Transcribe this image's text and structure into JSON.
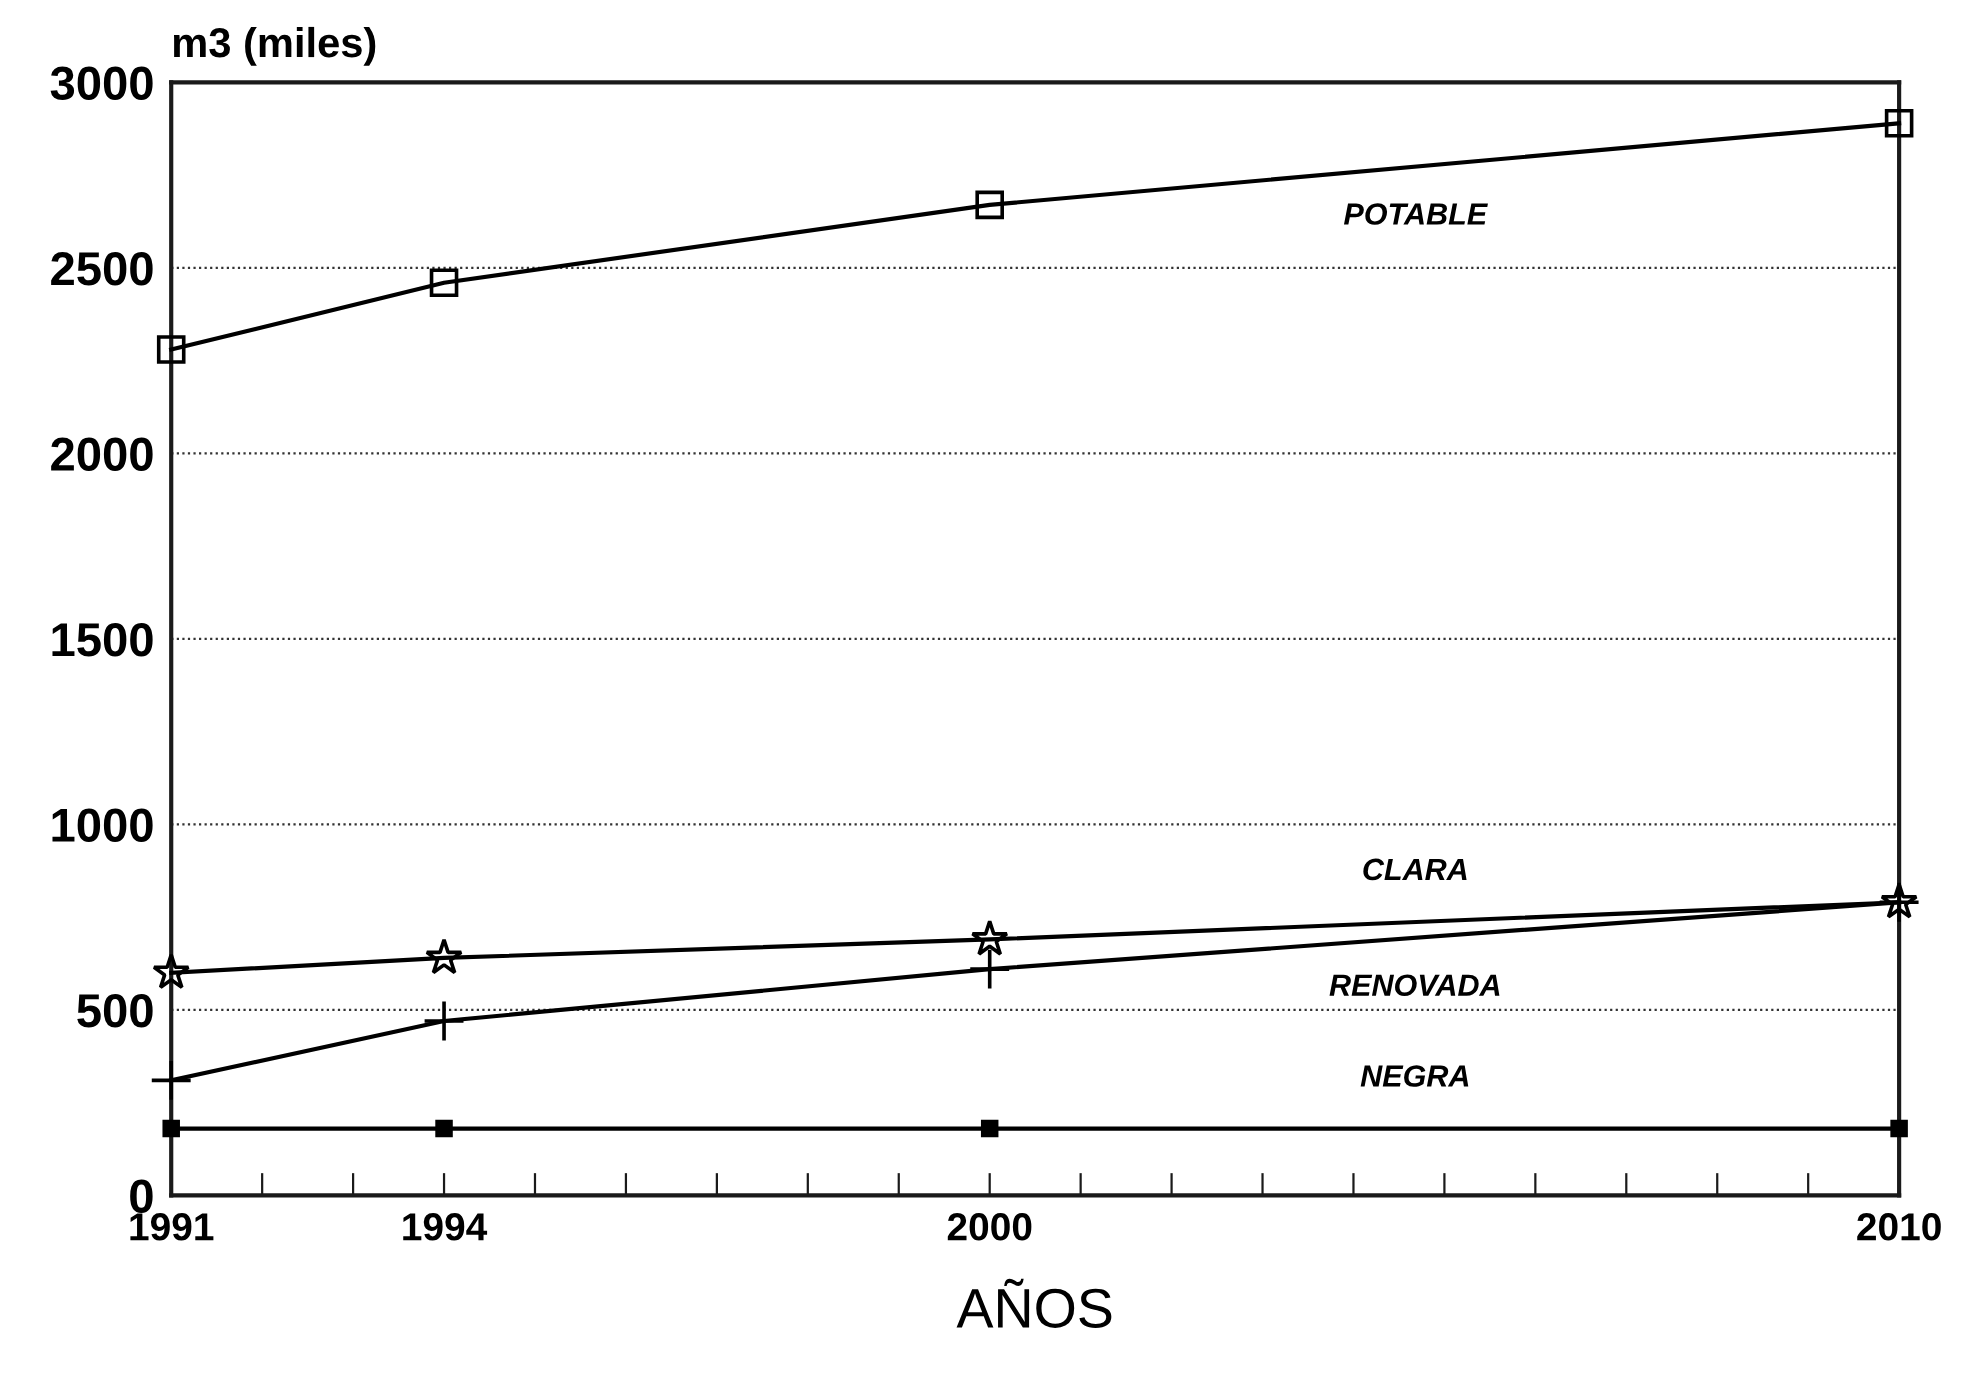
{
  "chart_data": {
    "type": "line",
    "ylabel": "m3 (miles)",
    "xlabel": "AÑOS",
    "x": [
      1991,
      1994,
      2000,
      2010
    ],
    "series": [
      {
        "name": "POTABLE",
        "color": "#000000",
        "marker": "square",
        "values": [
          2280,
          2460,
          2670,
          2890
        ]
      },
      {
        "name": "CLARA",
        "color": "#000000",
        "marker": "star",
        "values": [
          600,
          640,
          690,
          790
        ]
      },
      {
        "name": "RENOVADA",
        "color": "#000000",
        "marker": "cross",
        "values": [
          310,
          470,
          610,
          790
        ]
      },
      {
        "name": "NEGRA",
        "color": "#000000",
        "marker": "square",
        "values": [
          180,
          180,
          180,
          180
        ]
      }
    ],
    "xlim": [
      1991,
      2010
    ],
    "xticks": [
      1991,
      {
        "value": 1992,
        "label": null
      },
      {
        "value": 1993,
        "label": null
      },
      1994,
      {
        "value": 1995,
        "label": null
      },
      {
        "value": 1996,
        "label": null
      },
      {
        "value": 1997,
        "label": null
      },
      {
        "value": 1998,
        "label": null
      },
      {
        "value": 1999,
        "label": null
      },
      2000,
      {
        "value": 2001,
        "label": null
      },
      {
        "value": 2002,
        "label": null
      },
      {
        "value": 2003,
        "label": null
      },
      {
        "value": 2004,
        "label": null
      },
      {
        "value": 2005,
        "label": null
      },
      {
        "value": 2006,
        "label": null
      },
      {
        "value": 2007,
        "label": null
      },
      {
        "value": 2008,
        "label": null
      },
      {
        "value": 2009,
        "label": null
      },
      2010
    ],
    "ylim": [
      0,
      3000
    ],
    "yticks": [
      0,
      500,
      1000,
      1500,
      2000,
      2500,
      3000
    ],
    "grid": "y",
    "legend": false,
    "line_style": "solid"
  }
}
